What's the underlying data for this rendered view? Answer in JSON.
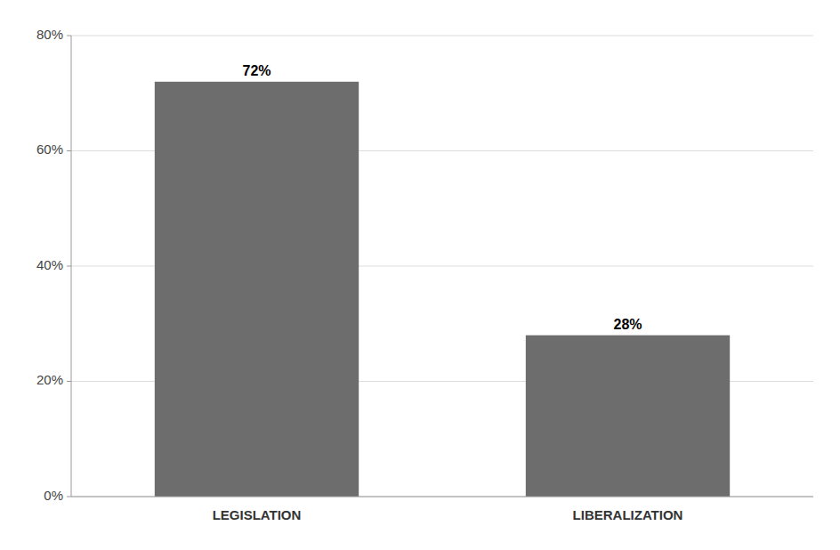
{
  "chart_data": {
    "type": "bar",
    "categories": [
      "LEGISLATION",
      "LIBERALIZATION"
    ],
    "values": [
      0.72,
      0.28
    ],
    "value_labels": [
      "72%",
      "28%"
    ],
    "color": "#6d6d6d",
    "ylim": [
      0,
      0.8
    ],
    "yticks": [
      {
        "value": 0.0,
        "label": "0%"
      },
      {
        "value": 0.2,
        "label": "20%"
      },
      {
        "value": 0.4,
        "label": "40%"
      },
      {
        "value": 0.6,
        "label": "60%"
      },
      {
        "value": 0.8,
        "label": "80%"
      }
    ],
    "grid": true,
    "data_labels": true
  }
}
